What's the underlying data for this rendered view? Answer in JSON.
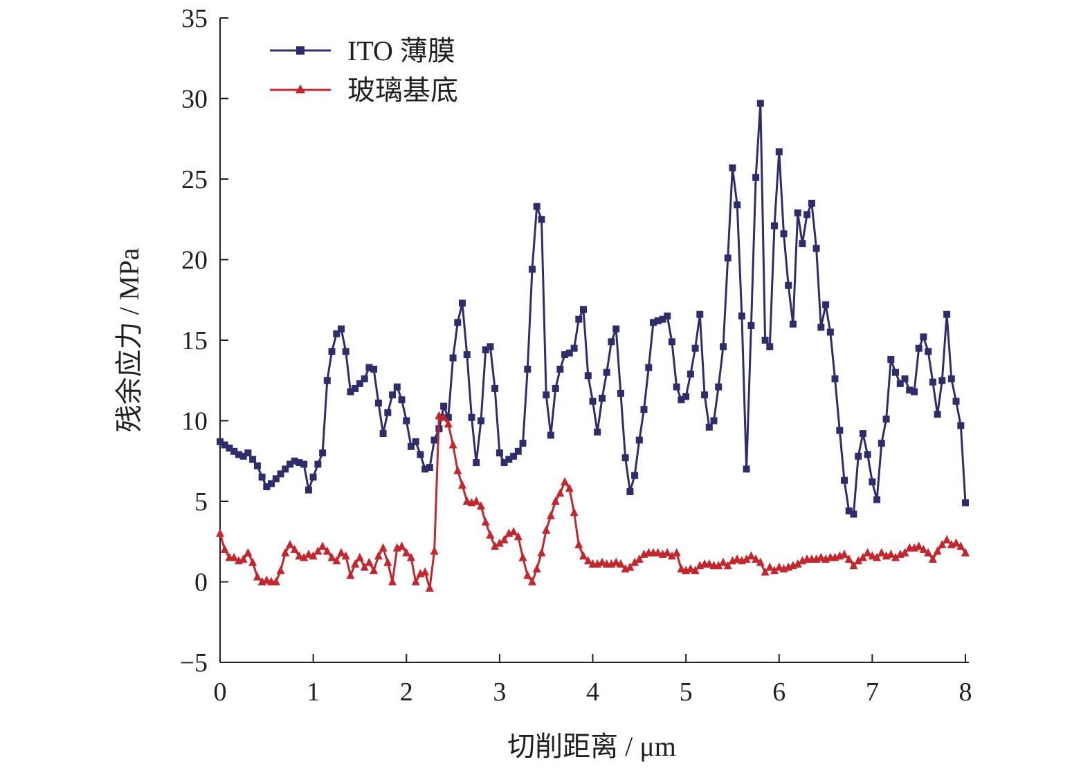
{
  "chart_data": {
    "type": "line",
    "xlabel": "切削距离 / μm",
    "ylabel": "残余应力 / MPa",
    "xlim": [
      0,
      8
    ],
    "ylim": [
      -5,
      35
    ],
    "x_ticks": [
      "0",
      "1",
      "2",
      "3",
      "4",
      "5",
      "6",
      "7",
      "8"
    ],
    "y_ticks": [
      "−5",
      "0",
      "5",
      "10",
      "15",
      "20",
      "25",
      "30",
      "35"
    ],
    "grid": false,
    "legend_position": "top-left",
    "series": [
      {
        "name": "ITO 薄膜",
        "color": "#2e2d6b",
        "marker": "square",
        "x": [
          0.0,
          0.05,
          0.1,
          0.15,
          0.2,
          0.25,
          0.3,
          0.35,
          0.4,
          0.45,
          0.5,
          0.55,
          0.6,
          0.65,
          0.7,
          0.75,
          0.8,
          0.85,
          0.9,
          0.95,
          1.0,
          1.05,
          1.1,
          1.15,
          1.2,
          1.25,
          1.3,
          1.35,
          1.4,
          1.45,
          1.5,
          1.55,
          1.6,
          1.65,
          1.7,
          1.75,
          1.8,
          1.85,
          1.9,
          1.95,
          2.0,
          2.05,
          2.1,
          2.15,
          2.2,
          2.25,
          2.3,
          2.35,
          2.4,
          2.45,
          2.5,
          2.55,
          2.6,
          2.65,
          2.7,
          2.75,
          2.8,
          2.85,
          2.9,
          2.95,
          3.0,
          3.05,
          3.1,
          3.15,
          3.2,
          3.25,
          3.3,
          3.35,
          3.4,
          3.45,
          3.5,
          3.55,
          3.6,
          3.65,
          3.7,
          3.75,
          3.8,
          3.85,
          3.9,
          3.95,
          4.0,
          4.05,
          4.1,
          4.15,
          4.2,
          4.25,
          4.3,
          4.35,
          4.4,
          4.45,
          4.5,
          4.55,
          4.6,
          4.65,
          4.7,
          4.75,
          4.8,
          4.85,
          4.9,
          4.95,
          5.0,
          5.05,
          5.1,
          5.15,
          5.2,
          5.25,
          5.3,
          5.35,
          5.4,
          5.45,
          5.5,
          5.55,
          5.6,
          5.65,
          5.7,
          5.75,
          5.8,
          5.85,
          5.9,
          5.95,
          6.0,
          6.05,
          6.1,
          6.15,
          6.2,
          6.25,
          6.3,
          6.35,
          6.4,
          6.45,
          6.5,
          6.55,
          6.6,
          6.65,
          6.7,
          6.75,
          6.8,
          6.85,
          6.9,
          6.95,
          7.0,
          7.05,
          7.1,
          7.15,
          7.2,
          7.25,
          7.3,
          7.35,
          7.4,
          7.45,
          7.5,
          7.55,
          7.6,
          7.65,
          7.7,
          7.75,
          7.8,
          7.85,
          7.9,
          7.95,
          8.0
        ],
        "y": [
          8.7,
          8.5,
          8.3,
          8.1,
          7.9,
          7.8,
          8.0,
          7.6,
          7.2,
          6.5,
          5.9,
          6.1,
          6.4,
          6.7,
          7.0,
          7.3,
          7.5,
          7.4,
          7.3,
          5.7,
          6.5,
          7.3,
          8.0,
          12.5,
          14.3,
          15.4,
          15.7,
          14.3,
          11.8,
          12.0,
          12.3,
          12.6,
          13.3,
          13.2,
          11.1,
          9.2,
          10.5,
          11.6,
          12.1,
          11.3,
          10.0,
          8.4,
          8.7,
          7.9,
          7.0,
          7.1,
          8.8,
          9.5,
          10.9,
          10.2,
          13.9,
          16.1,
          17.3,
          14.1,
          10.2,
          7.4,
          10.0,
          14.4,
          14.6,
          12.0,
          8.0,
          7.4,
          7.6,
          7.8,
          8.1,
          8.6,
          13.2,
          19.4,
          23.3,
          22.5,
          11.6,
          9.1,
          12.0,
          13.2,
          14.1,
          14.2,
          14.5,
          16.3,
          16.9,
          12.8,
          11.2,
          9.3,
          11.4,
          13.0,
          14.9,
          15.7,
          11.7,
          7.7,
          5.6,
          6.6,
          8.8,
          10.7,
          13.3,
          16.1,
          16.2,
          16.3,
          16.5,
          14.9,
          12.1,
          11.3,
          11.5,
          12.9,
          14.5,
          16.6,
          11.6,
          9.6,
          10.0,
          12.1,
          14.6,
          20.1,
          25.7,
          23.4,
          16.5,
          7.0,
          15.9,
          25.1,
          29.7,
          15.0,
          14.6,
          22.1,
          26.7,
          21.6,
          18.4,
          16.0,
          22.9,
          21.0,
          22.8,
          23.5,
          20.7,
          15.8,
          17.2,
          15.5,
          12.6,
          9.4,
          6.3,
          4.4,
          4.2,
          7.8,
          9.2,
          7.9,
          6.2,
          5.1,
          8.6,
          10.1,
          13.8,
          13.0,
          12.3,
          12.6,
          11.9,
          11.8,
          14.5,
          15.2,
          14.3,
          12.4,
          10.4,
          12.5,
          16.6,
          12.6,
          11.2,
          9.7,
          4.9
        ]
      },
      {
        "name": "玻璃基底",
        "color": "#c1272d",
        "marker": "triangle",
        "x": [
          0.0,
          0.05,
          0.1,
          0.15,
          0.2,
          0.25,
          0.3,
          0.35,
          0.4,
          0.45,
          0.5,
          0.55,
          0.6,
          0.65,
          0.7,
          0.75,
          0.8,
          0.85,
          0.9,
          0.95,
          1.0,
          1.05,
          1.1,
          1.15,
          1.2,
          1.25,
          1.3,
          1.35,
          1.4,
          1.45,
          1.5,
          1.55,
          1.6,
          1.65,
          1.7,
          1.75,
          1.8,
          1.85,
          1.9,
          1.95,
          2.0,
          2.05,
          2.1,
          2.15,
          2.2,
          2.25,
          2.3,
          2.35,
          2.4,
          2.45,
          2.5,
          2.55,
          2.6,
          2.65,
          2.7,
          2.75,
          2.8,
          2.85,
          2.9,
          2.95,
          3.0,
          3.05,
          3.1,
          3.15,
          3.2,
          3.25,
          3.3,
          3.35,
          3.4,
          3.45,
          3.5,
          3.55,
          3.6,
          3.65,
          3.7,
          3.75,
          3.8,
          3.85,
          3.9,
          3.95,
          4.0,
          4.05,
          4.1,
          4.15,
          4.2,
          4.25,
          4.3,
          4.35,
          4.4,
          4.45,
          4.5,
          4.55,
          4.6,
          4.65,
          4.7,
          4.75,
          4.8,
          4.85,
          4.9,
          4.95,
          5.0,
          5.05,
          5.1,
          5.15,
          5.2,
          5.25,
          5.3,
          5.35,
          5.4,
          5.45,
          5.5,
          5.55,
          5.6,
          5.65,
          5.7,
          5.75,
          5.8,
          5.85,
          5.9,
          5.95,
          6.0,
          6.05,
          6.1,
          6.15,
          6.2,
          6.25,
          6.3,
          6.35,
          6.4,
          6.45,
          6.5,
          6.55,
          6.6,
          6.65,
          6.7,
          6.75,
          6.8,
          6.85,
          6.9,
          6.95,
          7.0,
          7.05,
          7.1,
          7.15,
          7.2,
          7.25,
          7.3,
          7.35,
          7.4,
          7.45,
          7.5,
          7.55,
          7.6,
          7.65,
          7.7,
          7.75,
          7.8,
          7.85,
          7.9,
          7.95,
          8.0
        ],
        "y": [
          3.0,
          2.0,
          1.5,
          1.5,
          1.3,
          1.4,
          1.8,
          1.2,
          0.3,
          0.0,
          0.1,
          0.0,
          0.0,
          0.7,
          1.8,
          2.3,
          2.0,
          1.6,
          1.5,
          1.7,
          1.6,
          1.9,
          2.2,
          1.9,
          1.5,
          1.3,
          1.8,
          1.6,
          0.4,
          1.1,
          1.5,
          0.9,
          1.2,
          0.7,
          1.6,
          2.1,
          1.2,
          0.0,
          2.1,
          2.2,
          1.8,
          1.5,
          0.0,
          0.5,
          0.6,
          -0.4,
          1.9,
          10.3,
          10.2,
          9.8,
          8.5,
          6.9,
          6.0,
          5.0,
          4.9,
          5.0,
          4.7,
          3.7,
          2.9,
          2.2,
          2.4,
          2.6,
          3.0,
          3.1,
          2.8,
          1.5,
          0.4,
          0.0,
          0.8,
          1.8,
          3.2,
          4.1,
          5.0,
          5.5,
          6.2,
          5.8,
          4.3,
          2.3,
          1.6,
          1.3,
          1.1,
          1.1,
          1.2,
          1.1,
          1.1,
          1.2,
          1.1,
          0.8,
          0.9,
          1.2,
          1.4,
          1.7,
          1.8,
          1.8,
          1.8,
          1.7,
          1.8,
          1.6,
          1.8,
          0.8,
          0.7,
          0.8,
          0.7,
          1.0,
          1.1,
          1.1,
          1.0,
          1.0,
          1.2,
          1.0,
          1.3,
          1.4,
          1.3,
          1.4,
          1.6,
          1.4,
          1.2,
          0.6,
          0.9,
          0.7,
          0.9,
          0.8,
          0.9,
          1.0,
          1.1,
          1.3,
          1.4,
          1.4,
          1.4,
          1.5,
          1.4,
          1.5,
          1.5,
          1.6,
          1.7,
          1.4,
          1.0,
          1.3,
          1.5,
          1.8,
          1.6,
          1.5,
          1.8,
          1.6,
          1.7,
          1.5,
          1.7,
          1.8,
          2.1,
          2.1,
          2.2,
          2.0,
          1.8,
          1.4,
          1.9,
          2.3,
          2.6,
          2.3,
          2.4,
          2.2,
          1.8
        ]
      }
    ]
  }
}
